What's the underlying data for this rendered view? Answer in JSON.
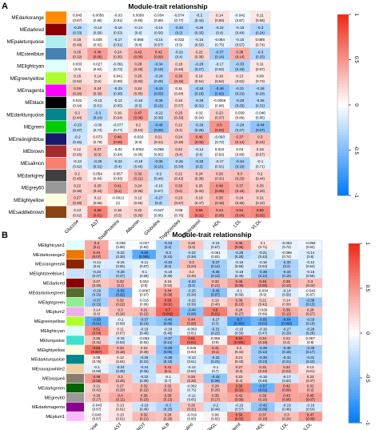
{
  "chart_data": [
    {
      "type": "heatmap",
      "panel_label": "A",
      "title": "Module-trait relationship",
      "rows": [
        "MEdarkorange",
        "MEdarkred",
        "MEpaleturquoise",
        "MEsteelblue",
        "MElightcyan",
        "MEgreenyellow",
        "MEmagenta",
        "MEblack",
        "MEdarkturquoise",
        "MEgreen",
        "MEmidnightblue",
        "MEbrown",
        "MEsalmon",
        "MEdarkgrey",
        "MEgrey60",
        "MElightyellow",
        "MEsaddlebrown"
      ],
      "row_colors": [
        "#ff8c00",
        "#8b0000",
        "#afeeee",
        "#4682b4",
        "#e0ffff",
        "#adff2f",
        "#ff00ff",
        "#000000",
        "#00868b",
        "#00cd00",
        "#191970",
        "#a52a2a",
        "#fa8072",
        "#404040",
        "#999999",
        "#ffffe0",
        "#8b4513"
      ],
      "columns": [
        "Glucose",
        "AST",
        "TotalProteins",
        "Albumin",
        "Globulins",
        "Triglycerides",
        "Cholesterol",
        "HDL",
        "LDL",
        "VLDL"
      ],
      "values": [
        [
          0.043,
          -0.0056,
          -0.03,
          0.0058,
          -0.034,
          -0.074,
          -0.2,
          0.14,
          -0.042,
          0.11
        ],
        [
          -0.25,
          -0.14,
          -0.16,
          -0.14,
          -0.15,
          -0.33,
          -0.25,
          -0.22,
          -0.18,
          -0.3
        ],
        [
          0.18,
          0.025,
          -0.17,
          -0.065,
          -0.15,
          -0.032,
          -0.16,
          -0.084,
          -0.15,
          0.085
        ],
        [
          0.26,
          0.46,
          0.24,
          0.42,
          0.42,
          -0.22,
          0.22,
          -0.37,
          0.38,
          -0.3
        ],
        [
          0.033,
          0.027,
          -0.091,
          0.28,
          -0.34,
          0.18,
          -0.28,
          -0.17,
          -0.33,
          0.11
        ],
        [
          0.16,
          0.14,
          0.041,
          0.25,
          -0.28,
          0.36,
          0.16,
          0.16,
          0.13,
          0.09
        ],
        [
          0.29,
          0.24,
          -0.23,
          0.24,
          -0.43,
          0.11,
          -0.34,
          -0.48,
          -0.31,
          -0.28
        ],
        [
          0.022,
          -0.13,
          -0.12,
          -0.18,
          -0.36,
          0.15,
          -0.26,
          -0.0056,
          -0.29,
          -0.26
        ],
        [
          0.2,
          -0.3,
          0.16,
          0.47,
          -0.22,
          0.25,
          0.02,
          0.23,
          0.039,
          -0.046
        ],
        [
          -0.23,
          -0.09,
          -0.077,
          0.2,
          -0.46,
          0.22,
          -0.29,
          0.5,
          -0.28,
          -0.44
        ],
        [
          -0.2,
          0.073,
          0.46,
          -0.033,
          0.21,
          0.24,
          0.46,
          -0.093,
          0.37,
          0.3
        ],
        [
          0.12,
          0.27,
          -0.02,
          0.0052,
          -0.058,
          0.22,
          -0.14,
          0.022,
          0.04,
          0.15
        ],
        [
          -0.13,
          -0.26,
          -0.22,
          -0.19,
          -0.36,
          -0.25,
          -0.33,
          -0.17,
          -0.34,
          -0.1
        ],
        [
          0.2,
          0.054,
          0.057,
          0.32,
          -0.2,
          0.21,
          0.24,
          0.26,
          0.3,
          0.2
        ],
        [
          0.22,
          0.25,
          0.41,
          0.24,
          -0.15,
          0.33,
          0.25,
          0.49,
          0.37,
          0.25
        ],
        [
          0.27,
          0.12,
          -0.0012,
          0.12,
          -0.27,
          0.23,
          0.19,
          0.35,
          0.24,
          0.21
        ],
        [
          0.13,
          0.58,
          0.18,
          0.22,
          -0.047,
          0.08,
          0.55,
          0.44,
          0.51,
          0.55
        ]
      ],
      "pvalues": [
        [
          "(0.87)",
          "(0.98)",
          "(0.91)",
          "(0.98)",
          "(0.89)",
          "(0.77)",
          "(0.44)",
          "(0.59)",
          "(0.87)",
          "(0.68)"
        ],
        [
          "(0.33)",
          "(0.59)",
          "(0.53)",
          "(0.6)",
          "(0.56)",
          "(0.2)",
          "(0.33)",
          "(0.4)",
          "(0.49)",
          "(0.24)"
        ],
        [
          "(0.49)",
          "(0.92)",
          "(0.51)",
          "(0.8)",
          "(0.57)",
          "(0.9)",
          "(0.53)",
          "(0.75)",
          "(0.57)",
          "(0.74)"
        ],
        [
          "(0.32)",
          "(0.06)",
          "(0.35)",
          "(0.09)",
          "(0.09)",
          "(0.4)",
          "(0.39)",
          "(0.14)",
          "(0.14)",
          "(0.25)"
        ],
        [
          "(0.9)",
          "(0.92)",
          "(0.73)",
          "(0.28)",
          "(0.18)",
          "(0.48)",
          "(0.27)",
          "(0.52)",
          "(0.19)",
          "(0.67)"
        ],
        [
          "(0.52)",
          "(0.6)",
          "(0.88)",
          "(0.33)",
          "(0.28)",
          "(0.16)",
          "(0.54)",
          "(0.54)",
          "(0.62)",
          "(0.73)"
        ],
        [
          "(0.26)",
          "(0.35)",
          "(0.38)",
          "(0.35)",
          "(0.09)",
          "(0.68)",
          "(0.18)",
          "(0.05)",
          "(0.23)",
          "(0.28)"
        ],
        [
          "(0.94)",
          "(0.61)",
          "(0.65)",
          "(0.5)",
          "(0.15)",
          "(0.57)",
          "(0.31)",
          "(0.98)",
          "(0.25)",
          "(0.31)"
        ],
        [
          "(0.44)",
          "(0.24)",
          "(0.54)",
          "(0.06)",
          "(0.39)",
          "(0.33)",
          "(0.94)",
          "(0.37)",
          "(0.88)",
          "(0.86)"
        ],
        [
          "(0.37)",
          "(0.73)",
          "(0.77)",
          "(0.44)",
          "(0.06)",
          "(0.4)",
          "(0.26)",
          "(0.04)",
          "(0.27)",
          "(0.07)"
        ],
        [
          "(0.45)",
          "(0.78)",
          "(0.06)",
          "(0.9)",
          "(0.41)",
          "(0.35)",
          "(0.06)",
          "(0.72)",
          "(0.14)",
          "(0.24)"
        ],
        [
          "(0.65)",
          "(0.3)",
          "(0.94)",
          "(0.98)",
          "(0.82)",
          "(0.4)",
          "(0.6)",
          "(0.93)",
          "(0.88)",
          "(0.57)"
        ],
        [
          "(0.62)",
          "(0.31)",
          "(0.4)",
          "(0.46)",
          "(0.15)",
          "(0.34)",
          "(0.2)",
          "(0.51)",
          "(0.19)",
          "(0.71)"
        ],
        [
          "(0.45)",
          "(0.84)",
          "(0.83)",
          "(0.21)",
          "(0.44)",
          "(0.42)",
          "(0.36)",
          "(0.31)",
          "(0.25)",
          "(0.44)"
        ],
        [
          "(0.39)",
          "(0.34)",
          "(0.1)",
          "(0.36)",
          "(0.57)",
          "(0.2)",
          "(0.34)",
          "(0.05)",
          "(0.15)",
          "(0.33)"
        ],
        [
          "(0.29)",
          "(0.65)",
          "(1)",
          "(0.65)",
          "(0.3)",
          "(0.37)",
          "(0.47)",
          "(0.16)",
          "(0.35)",
          "(0.42)"
        ],
        [
          "(0.62)",
          "(0.01)",
          "(0.5)",
          "(0.39)",
          "(0.86)",
          "(0.76)",
          "(0.02)",
          "(0.08)",
          "(0.04)",
          "(0.02)"
        ]
      ],
      "legend_ticks": [
        "1",
        "0.5",
        "0",
        "-0.5",
        "-1"
      ]
    },
    {
      "type": "heatmap",
      "panel_label": "B",
      "title": "Module-trait relationship",
      "rows": [
        "MElightcyan1",
        "MEdarkorange2",
        "MEorangered4",
        "MElightsteelblue1",
        "MEdarkred",
        "MEdarkolivegreen",
        "MElightgreen",
        "MEplum2",
        "MEgreenyellow",
        "MElightcyan",
        "MEturquoise",
        "MElightyellow",
        "MEdarkturquoise",
        "MEnavajowhite2",
        "MEbisque4",
        "MEdarkgreen",
        "MEgrey60",
        "MEdarkmagenta",
        "MEplum1"
      ],
      "row_colors": [
        "#e0ffff",
        "#ee7600",
        "#8b2500",
        "#cae1ff",
        "#8b0000",
        "#556b2f",
        "#90ee90",
        "#eeaeee",
        "#adff2f",
        "#e0ffff",
        "#40e0d0",
        "#ffffe0",
        "#00868b",
        "#eecfa1",
        "#8b7d6b",
        "#006400",
        "#999999",
        "#8b008b",
        "#ffbbff"
      ],
      "columns": [
        "Glucose",
        "AST",
        "PROT",
        "ALB",
        "Globulins",
        "TRIGL",
        "Cholesterol",
        "HDL",
        "LDL",
        "VLDL"
      ],
      "values": [
        [
          0.4,
          -0.036,
          -0.027,
          -0.33,
          0.26,
          -0.15,
          0.46,
          0.1,
          -0.094,
          -0.059
        ],
        [
          0.44,
          -0.22,
          -0.65,
          -0.3,
          -0.22,
          -0.061,
          -0.28,
          -0.21,
          -0.086,
          -0.14
        ],
        [
          -0.14,
          -0.15,
          -0.11,
          -0.33,
          0.3,
          -0.37,
          -0.16,
          -0.16,
          -0.33,
          -0.12
        ],
        [
          -0.23,
          -0.28,
          -0.1,
          -0.18,
          0.2,
          -0.38,
          -0.18,
          -0.39,
          -0.33,
          -0.15
        ],
        [
          0.27,
          0.33,
          0.034,
          0.16,
          -0.33,
          0.32,
          0.46,
          0.46,
          0.38,
          0.3
        ],
        [
          -0.29,
          -0.55,
          -0.0087,
          0.44,
          -0.25,
          -0.45,
          -0.1,
          -0.034,
          -0.14,
          -0.042
        ],
        [
          -0.37,
          0.32,
          0.015,
          0.59,
          -0.22,
          0.19,
          0.36,
          0.21,
          0.14,
          -0.38
        ],
        [
          0.14,
          0.3,
          0.31,
          0.7,
          -0.44,
          0.6,
          0.28,
          0.035,
          0.39,
          0.28
        ],
        [
          -0.59,
          -0.1,
          -0.37,
          -0.46,
          0.44,
          -0.27,
          -0.7,
          -0.55,
          -0.64,
          -0.33
        ],
        [
          0.51,
          0.11,
          -0.19,
          -0.18,
          -0.063,
          -0.31,
          -0.15,
          -0.19,
          -0.27,
          -0.29
        ],
        [
          0.26,
          -0.16,
          -0.063,
          -0.37,
          0.61,
          0.065,
          0.64,
          0.34,
          0.22,
          0.067
        ],
        [
          0.63,
          0.34,
          0.22,
          -0.48,
          0.026,
          0.41,
          0.2,
          -0.39,
          -0.36,
          -0.35
        ],
        [
          0.08,
          0.12,
          -0.26,
          -0.38,
          -0.13,
          -0.32,
          0.21,
          -0.38,
          -0.32,
          -0.31
        ],
        [
          -0.1,
          -0.24,
          -0.24,
          0.41,
          -0.12,
          -0.1,
          0.27,
          0.31,
          0.32,
          0.13
        ],
        [
          0.46,
          0.3,
          -0.22,
          -0.1,
          0.28,
          -0.43,
          0.22,
          -0.18,
          -0.17,
          0.23
        ],
        [
          0.21,
          0.27,
          0.32,
          0.32,
          -0.082,
          0.29,
          0.56,
          -0.57,
          0.42,
          0.32
        ],
        [
          0.28,
          0.4,
          0.36,
          0.38,
          -0.12,
          0.35,
          0.42,
          0.36,
          0.43,
          0.45
        ],
        [
          -0.043,
          0.13,
          -0.19,
          -0.3,
          0.26,
          -0.2,
          -0.15,
          -0.42,
          -0.19,
          -0.16
        ],
        [
          0.043,
          0.13,
          0.32,
          0.28,
          -0.016,
          0.06,
          0.56,
          0.37,
          0.3,
          0.47
        ]
      ],
      "pvalues": [
        [
          "(0.1)",
          "(0.89)",
          "(0.92)",
          "(0.2)",
          "(0.3)",
          "(0.57)",
          "(0.06)",
          "(0.71)",
          "(0.72)",
          "(0.82)"
        ],
        [
          "(0.07)",
          "(0.39)",
          "(0.005)",
          "(0.24)",
          "(0.39)",
          "(0.82)",
          "(0.28)",
          "(0.42)",
          "(0.74)",
          "(0.6)"
        ],
        [
          "(0.6)",
          "(0.56)",
          "(0.67)",
          "(0.2)",
          "(0.24)",
          "(0.14)",
          "(0.55)",
          "(0.54)",
          "(0.2)",
          "(0.64)"
        ],
        [
          "(0.37)",
          "(0.27)",
          "(0.69)",
          "(0.49)",
          "(0.45)",
          "(0.13)",
          "(0.49)",
          "(0.12)",
          "(0.19)",
          "(0.56)"
        ],
        [
          "(0.29)",
          "(0.2)",
          "(0.9)",
          "(0.53)",
          "(0.2)",
          "(0.21)",
          "(0.06)",
          "(0.06)",
          "(0.13)",
          "(0.24)"
        ],
        [
          "(0.26)",
          "(0.02)",
          "(0.97)",
          "(0.08)",
          "(0.34)",
          "(0.07)",
          "(0.69)",
          "(0.9)",
          "(0.59)",
          "(0.87)"
        ],
        [
          "(0.15)",
          "(0.22)",
          "(0.96)",
          "(0.01)",
          "(0.39)",
          "(0.46)",
          "(0.15)",
          "(0.42)",
          "(0.59)",
          "(0.13)"
        ],
        [
          "(0.6)",
          "(0.24)",
          "(0.22)",
          "(0.002)",
          "(0.08)",
          "(0.01)",
          "(0.27)",
          "(0.89)",
          "(0.12)",
          "(0.27)"
        ],
        [
          "(0.01)",
          "(0.69)",
          "(0.14)",
          "(0.06)",
          "(0.08)",
          "(0.3)",
          "(0.002)",
          "(0.02)",
          "(0.006)",
          "(0.19)"
        ],
        [
          "(0.04)",
          "(0.67)",
          "(0.46)",
          "(0.48)",
          "(0.81)",
          "(0.22)",
          "(0.56)",
          "(0.47)",
          "(0.29)",
          "(0.26)"
        ],
        [
          "(0.31)",
          "(0.53)",
          "(0.81)",
          "(0.14)",
          "(0.01)",
          "(0.8)",
          "(0.005)",
          "(0.18)",
          "(0.4)",
          "(0.8)"
        ],
        [
          "(0.007)",
          "(0.18)",
          "(0.39)",
          "(0.05)",
          "(0.92)",
          "(0.1)",
          "(0.44)",
          "(0.12)",
          "(0.16)",
          "(0.17)"
        ],
        [
          "(0.76)",
          "(0.64)",
          "(0.31)",
          "(0.13)",
          "(0.61)",
          "(0.21)",
          "(0.43)",
          "(0.13)",
          "(0.21)",
          "(0.22)"
        ],
        [
          "(0.69)",
          "(0.35)",
          "(0.36)",
          "(0.1)",
          "(0.64)",
          "(0.7)",
          "(0.3)",
          "(0.23)",
          "(0.21)",
          "(0.61)"
        ],
        [
          "(0.06)",
          "(0.25)",
          "(0.39)",
          "(0.7)",
          "(0.28)",
          "(0.09)",
          "(0.4)",
          "(0.49)",
          "(0.52)",
          "(0.37)"
        ],
        [
          "(0.42)",
          "(0.29)",
          "(0.22)",
          "(0.21)",
          "(0.75)",
          "(0.26)",
          "(0.02)",
          "(0.02)",
          "(0.09)",
          "(0.2)"
        ],
        [
          "(0.27)",
          "(0.11)",
          "(0.15)",
          "(0.13)",
          "(0.65)",
          "(0.17)",
          "(0.09)",
          "(0.16)",
          "(0.08)",
          "(0.07)"
        ],
        [
          "(0.87)",
          "(0.61)",
          "(0.46)",
          "(0.25)",
          "(0.31)",
          "(0.44)",
          "(0.57)",
          "(0.09)",
          "(0.46)",
          "(0.54)"
        ],
        [
          "(0.87)",
          "(0.61)",
          "(0.21)",
          "(0.28)",
          "(0.95)",
          "(0.82)",
          "(0.02)",
          "(0.15)",
          "(0.24)",
          "(0.06)"
        ]
      ],
      "legend_ticks": [
        "1",
        "0.5",
        "0",
        "-0.5",
        "-1"
      ]
    }
  ]
}
